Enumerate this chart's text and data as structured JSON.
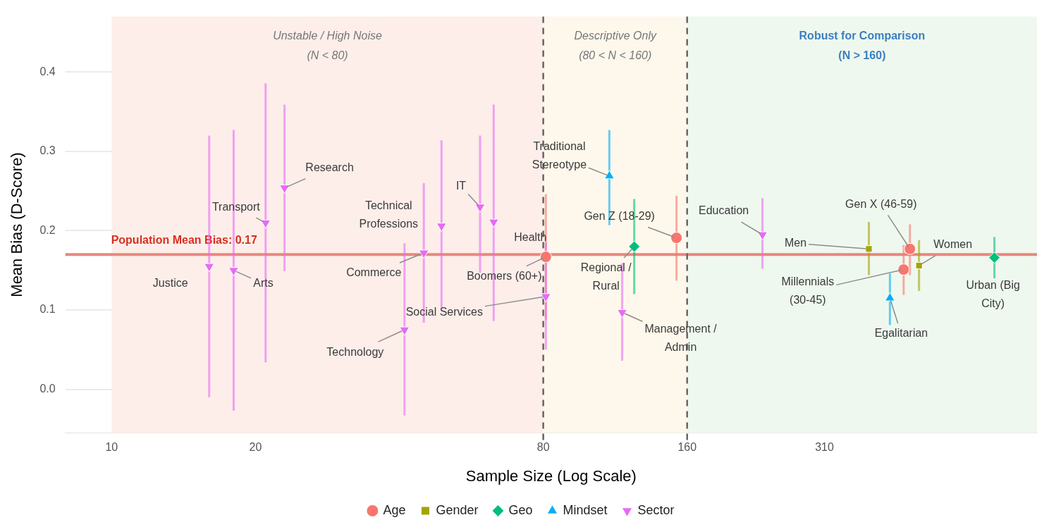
{
  "chart_data": {
    "type": "scatter",
    "xlabel": "Sample Size (Log Scale)",
    "ylabel": "Mean Bias (D-Score)",
    "log": "x",
    "xlim": [
      8,
      863
    ],
    "xticks": [
      10,
      20,
      80,
      160,
      310
    ],
    "ylim": [
      -0.055,
      0.47
    ],
    "yticks": [
      {
        "value": 0,
        "label": "0.0"
      },
      {
        "value": 0.1,
        "label": "0.1"
      },
      {
        "value": 0.2,
        "label": "0.2"
      },
      {
        "value": 0.3,
        "label": "0.3"
      },
      {
        "value": 0.4,
        "label": "0.4"
      }
    ],
    "grid": "y",
    "legend": "bottom",
    "series": [
      {
        "name": "Age",
        "color": "#f8766d",
        "marker": "circle",
        "x": [
          81,
          152,
          454,
          468
        ],
        "values": [
          0.167,
          0.191,
          0.151,
          0.177
        ],
        "errors": [
          [
            0.088,
            0.246
          ],
          [
            0.137,
            0.244
          ],
          [
            0.119,
            0.182
          ],
          [
            0.144,
            0.208
          ]
        ]
      },
      {
        "name": "Gender",
        "color": "#a3a500",
        "marker": "square",
        "x": [
          384,
          489
        ],
        "values": [
          0.177,
          0.156
        ],
        "errors": [
          [
            0.144,
            0.211
          ],
          [
            0.124,
            0.188
          ]
        ]
      },
      {
        "name": "Geo",
        "color": "#00bf7d",
        "marker": "diamond",
        "x": [
          124,
          703
        ],
        "values": [
          0.18,
          0.166
        ],
        "errors": [
          [
            0.12,
            0.24
          ],
          [
            0.14,
            0.192
          ]
        ]
      },
      {
        "name": "Mindset",
        "color": "#00b0f6",
        "marker": "triangle",
        "x": [
          110,
          425
        ],
        "values": [
          0.269,
          0.115
        ],
        "errors": [
          [
            0.207,
            0.327
          ],
          [
            0.081,
            0.146
          ]
        ]
      },
      {
        "name": "Sector",
        "color": "#e76bf3",
        "marker": "triangle-down",
        "x": [
          16,
          18,
          21,
          23,
          41,
          45,
          49,
          59,
          63,
          81,
          117,
          230
        ],
        "values": [
          0.155,
          0.15,
          0.21,
          0.254,
          0.075,
          0.172,
          0.206,
          0.23,
          0.211,
          0.117,
          0.097,
          0.195
        ],
        "errors": [
          [
            -0.01,
            0.32
          ],
          [
            -0.027,
            0.327
          ],
          [
            0.034,
            0.386
          ],
          [
            0.149,
            0.359
          ],
          [
            -0.033,
            0.184
          ],
          [
            0.084,
            0.26
          ],
          [
            0.103,
            0.314
          ],
          [
            0.147,
            0.32
          ],
          [
            0.086,
            0.359
          ],
          [
            0.05,
            0.185
          ],
          [
            0.036,
            0.159
          ],
          [
            0.152,
            0.241
          ]
        ]
      }
    ],
    "ref_lines": [
      {
        "axis": "y",
        "value": 0.17,
        "label": "Population Mean Bias: 0.17",
        "color": "#e8877f"
      },
      {
        "axis": "x",
        "value": 80,
        "color": "#666666",
        "line_style": "dashed"
      },
      {
        "axis": "x",
        "value": 160,
        "color": "#666666",
        "line_style": "dashed"
      }
    ],
    "bands": [
      {
        "axis": "x",
        "from": 10,
        "to": 80,
        "label": "Unstable / High Noise\n(N < 80)",
        "color": "#fdeeea"
      },
      {
        "axis": "x",
        "from": 80,
        "to": 160,
        "label": "Descriptive Only\n(80 < N < 160)",
        "color": "#fef8ec"
      },
      {
        "axis": "x",
        "from": 160,
        "to": 863,
        "label": "Robust for Comparison\n(N > 160)",
        "color": "#eff8ef"
      }
    ],
    "annotations": [
      {
        "text": "Justice",
        "x": 16,
        "y": 0.155
      },
      {
        "text": "Arts",
        "x": 18,
        "y": 0.15
      },
      {
        "text": "Transport",
        "x": 21,
        "y": 0.21
      },
      {
        "text": "Research",
        "x": 23,
        "y": 0.254
      },
      {
        "text": "Technology",
        "x": 41,
        "y": 0.075
      },
      {
        "text": "Commerce",
        "x": 45,
        "y": 0.172
      },
      {
        "text": "Technical\nProfessions",
        "x": 49,
        "y": 0.206
      },
      {
        "text": "IT",
        "x": 59,
        "y": 0.23
      },
      {
        "text": "Health",
        "x": 63,
        "y": 0.211
      },
      {
        "text": "Social Services",
        "x": 81,
        "y": 0.117
      },
      {
        "text": "Management /\nAdmin",
        "x": 117,
        "y": 0.097
      },
      {
        "text": "Education",
        "x": 230,
        "y": 0.195
      },
      {
        "text": "Boomers (60+)",
        "x": 81,
        "y": 0.167
      },
      {
        "text": "Gen Z (18-29)",
        "x": 152,
        "y": 0.191
      },
      {
        "text": "Gen X (46-59)",
        "x": 468,
        "y": 0.177
      },
      {
        "text": "Millennials\n(30-45)",
        "x": 454,
        "y": 0.151
      },
      {
        "text": "Men",
        "x": 384,
        "y": 0.177
      },
      {
        "text": "Women",
        "x": 489,
        "y": 0.156
      },
      {
        "text": "Regional /\nRural",
        "x": 124,
        "y": 0.18
      },
      {
        "text": "Urban (Big\nCity)",
        "x": 703,
        "y": 0.166
      },
      {
        "text": "Traditional\nStereotype",
        "x": 110,
        "y": 0.269
      },
      {
        "text": "Egalitarian",
        "x": 425,
        "y": 0.115
      }
    ]
  }
}
